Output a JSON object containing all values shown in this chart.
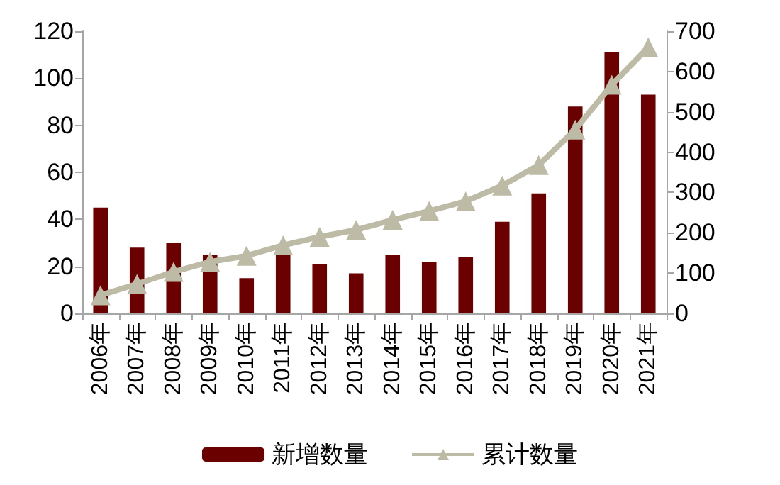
{
  "chart_data": {
    "type": "bar",
    "categories": [
      "2006年",
      "2007年",
      "2008年",
      "2009年",
      "2010年",
      "2011年",
      "2012年",
      "2013年",
      "2014年",
      "2015年",
      "2016年",
      "2017年",
      "2018年",
      "2019年",
      "2020年",
      "2021年"
    ],
    "series": [
      {
        "name": "新增数量",
        "color": "#6b0000",
        "values": [
          45,
          28,
          30,
          25,
          15,
          26,
          21,
          17,
          25,
          22,
          24,
          39,
          51,
          88,
          111,
          93
        ]
      },
      {
        "name": "累计数量",
        "type": "line",
        "axis": "y2",
        "color": "#bdbba6",
        "marker": "triangle",
        "values": [
          45,
          73,
          103,
          128,
          143,
          169,
          190,
          207,
          232,
          254,
          278,
          317,
          368,
          456,
          567,
          660
        ]
      }
    ],
    "ylim": [
      0,
      120
    ],
    "yticks": [
      0,
      20,
      40,
      60,
      80,
      100,
      120
    ],
    "y2lim": [
      0,
      700
    ],
    "y2ticks": [
      0,
      100,
      200,
      300,
      400,
      500,
      600,
      700
    ],
    "grid": false,
    "legend": "bottom"
  }
}
